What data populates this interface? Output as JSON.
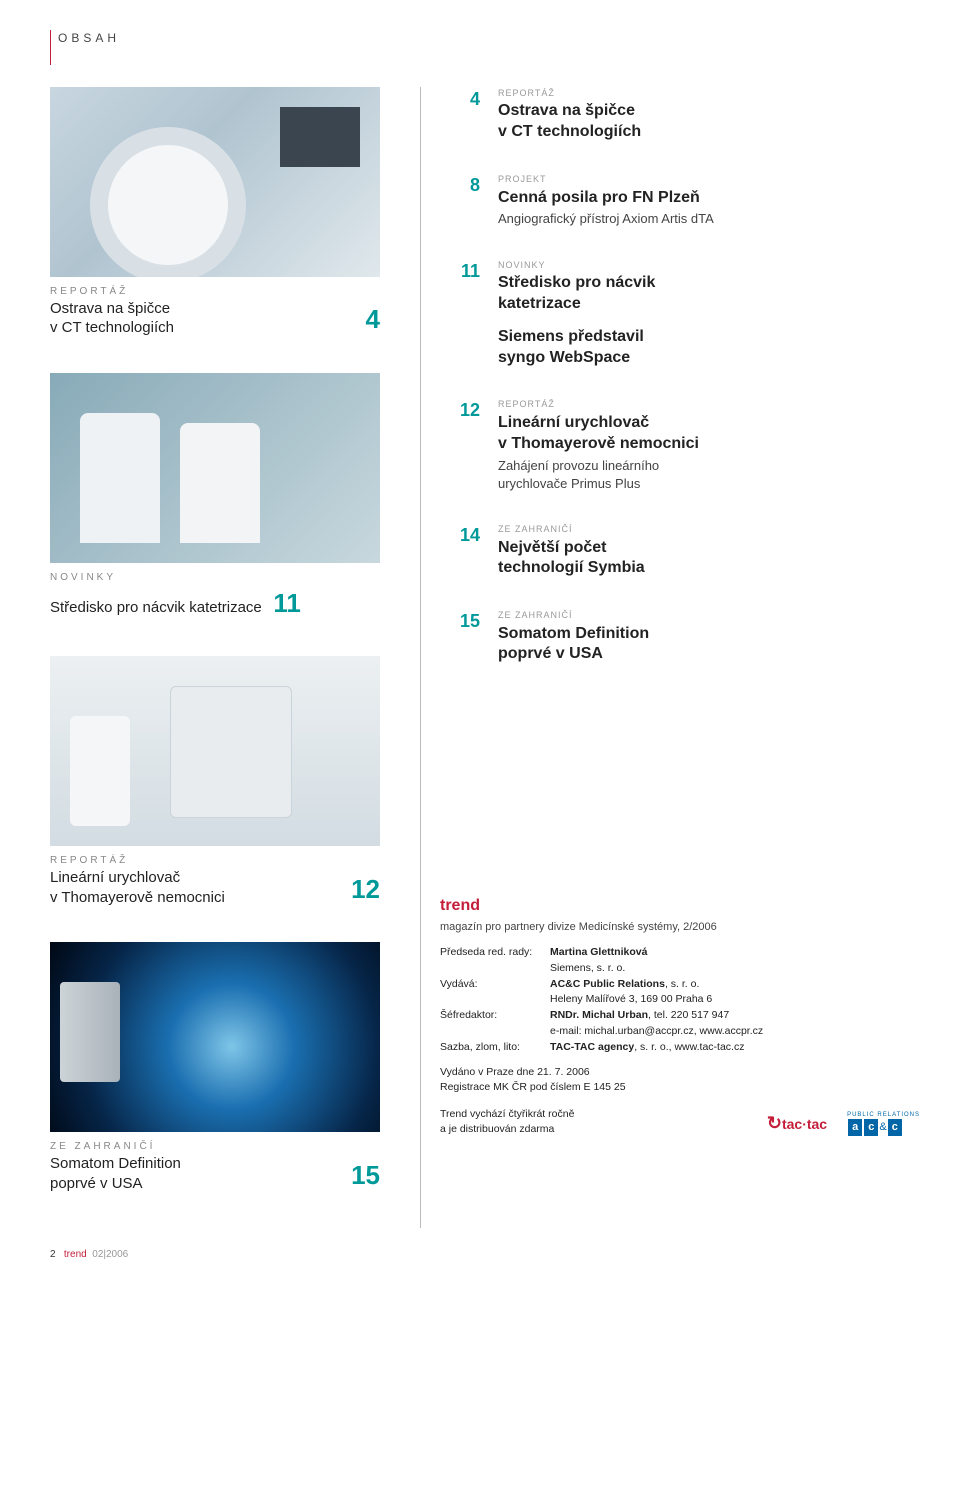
{
  "header": {
    "section": "OBSAH"
  },
  "colors": {
    "accent_teal": "#009999",
    "accent_red": "#c41e3a",
    "text": "#000000",
    "muted": "#888888"
  },
  "left_items": [
    {
      "label": "REPORTÁŽ",
      "title_l1": "Ostrava na špičce",
      "title_l2": "v CT technologiích",
      "num": "4",
      "thumb": "ct"
    },
    {
      "label": "NOVINKY",
      "title_l1": "Středisko pro nácvik katetrizace",
      "title_l2": "",
      "num": "11",
      "thumb": "docs"
    },
    {
      "label": "REPORTÁŽ",
      "title_l1": "Lineární urychlovač",
      "title_l2": "v Thomayerově nemocnici",
      "num": "12",
      "thumb": "scanner"
    },
    {
      "label": "ZE ZAHRANIČÍ",
      "title_l1": "Somatom Definition",
      "title_l2": "poprvé v USA",
      "num": "15",
      "thumb": "blue"
    }
  ],
  "toc": [
    {
      "num": "4",
      "label": "REPORTÁŽ",
      "title": "Ostrava na špičce\nv CT technologiích",
      "sub": ""
    },
    {
      "num": "8",
      "label": "PROJEKT",
      "title": "Cenná posila pro FN Plzeň",
      "sub": "Angiografický přístroj Axiom Artis dTA"
    },
    {
      "num": "11",
      "label": "NOVINKY",
      "title": "Středisko pro nácvik\nkatetrizace",
      "sub": "Siemens představil\nsyngo WebSpace",
      "sub_is_title_cont": true
    },
    {
      "num": "12",
      "label": "REPORTÁŽ",
      "title": "Lineární urychlovač\nv Thomayerově nemocnici",
      "sub": "Zahájení provozu lineárního\nurychlovače Primus Plus"
    },
    {
      "num": "14",
      "label": "ZE ZAHRANIČÍ",
      "title": "Největší počet\ntechnologií Symbia",
      "sub": ""
    },
    {
      "num": "15",
      "label": "ZE ZAHRANIČÍ",
      "title": "Somatom Definition\npoprvé v USA",
      "sub": ""
    }
  ],
  "masthead": {
    "brand": "trend",
    "tagline": "magazín pro partnery divize Medicínské systémy, 2/2006",
    "rows": [
      {
        "key": "Předseda red. rady:",
        "val_bold": "Martina Glettniková",
        "val2": "Siemens, s. r. o."
      },
      {
        "key": "Vydává:",
        "val_bold": "AC&C Public Relations",
        "val_plain": ", s. r. o.",
        "val2": "Heleny Malířové 3, 169 00 Praha 6"
      },
      {
        "key": "Šéfredaktor:",
        "val_bold": "RNDr. Michal Urban",
        "val_plain": ", tel. 220 517 947",
        "val2": "e-mail: michal.urban@accpr.cz, www.accpr.cz"
      },
      {
        "key": "Sazba, zlom, lito:",
        "val_bold": "TAC-TAC agency",
        "val_plain": ", s. r. o., www.tac-tac.cz",
        "val2": ""
      }
    ],
    "issued": "Vydáno v Praze dne 21. 7. 2006",
    "reg": "Registrace MK ČR pod číslem E 145 25",
    "freq": "Trend vychází čtyřikrát ročně\na je distribuován zdarma"
  },
  "logos": {
    "tactac": "tac·tac",
    "acc_label": "PUBLIC RELATIONS",
    "acc_a": "a",
    "acc_c1": "c",
    "acc_amp": "&",
    "acc_c2": "c"
  },
  "footer": {
    "page": "2",
    "mag": "trend",
    "issue": "02|2006"
  }
}
